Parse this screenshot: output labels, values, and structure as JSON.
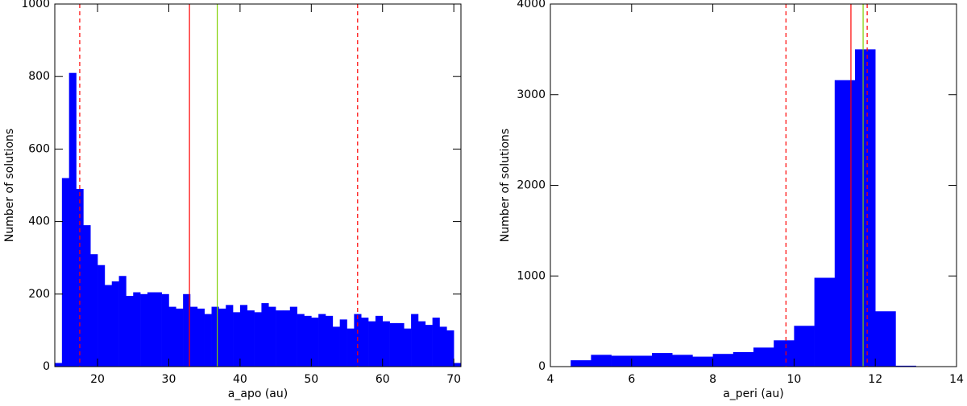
{
  "chart_data": [
    {
      "type": "histogram",
      "x_label": "a_apo (au)",
      "y_label": "Number of solutions",
      "color": "#0000ff",
      "bins": [
        14,
        15,
        16,
        17,
        18,
        19,
        20,
        21,
        22,
        23,
        24,
        25,
        26,
        27,
        28,
        29,
        30,
        31,
        32,
        33,
        34,
        35,
        36,
        37,
        38,
        39,
        40,
        41,
        42,
        43,
        44,
        45,
        46,
        47,
        48,
        49,
        50,
        51,
        52,
        53,
        54,
        55,
        56,
        57,
        58,
        59,
        60,
        61,
        62,
        63,
        64,
        65,
        66,
        67,
        68,
        69,
        70,
        71
      ],
      "values": [
        10,
        520,
        810,
        490,
        390,
        310,
        280,
        225,
        235,
        250,
        195,
        205,
        200,
        205,
        205,
        200,
        165,
        160,
        200,
        165,
        160,
        145,
        165,
        160,
        170,
        150,
        170,
        155,
        150,
        175,
        165,
        155,
        155,
        165,
        145,
        140,
        135,
        145,
        140,
        110,
        130,
        105,
        145,
        135,
        125,
        140,
        125,
        120,
        120,
        105,
        145,
        125,
        115,
        135,
        110,
        100,
        10
      ],
      "xlim": [
        14,
        71
      ],
      "xticks": [
        20,
        30,
        40,
        50,
        60,
        70
      ],
      "ylim": [
        0,
        1000
      ],
      "yticks": [
        0,
        200,
        400,
        600,
        800,
        1000
      ],
      "vlines": [
        {
          "value": 17.5,
          "color": "#ff0000",
          "style": "dashed"
        },
        {
          "value": 32.9,
          "color": "#ff0000",
          "style": "solid"
        },
        {
          "value": 36.8,
          "color": "#80d000",
          "style": "solid"
        },
        {
          "value": 56.5,
          "color": "#ff0000",
          "style": "dashed"
        }
      ]
    },
    {
      "type": "histogram",
      "x_label": "a_peri (au)",
      "y_label": "Number of solutions",
      "color": "#0000ff",
      "bins": [
        4.5,
        5,
        5.5,
        6,
        6.5,
        7,
        7.5,
        8,
        8.5,
        9,
        9.5,
        10,
        10.5,
        11,
        11.5,
        12,
        12.5,
        13
      ],
      "values": [
        70,
        130,
        120,
        120,
        150,
        130,
        110,
        140,
        160,
        210,
        290,
        450,
        980,
        3160,
        3500,
        610,
        10
      ],
      "xlim": [
        4,
        14
      ],
      "xticks": [
        4,
        6,
        8,
        10,
        12,
        14
      ],
      "ylim": [
        0,
        4000
      ],
      "yticks": [
        0,
        1000,
        2000,
        3000,
        4000
      ],
      "vlines": [
        {
          "value": 9.8,
          "color": "#ff0000",
          "style": "dashed"
        },
        {
          "value": 11.4,
          "color": "#ff0000",
          "style": "solid"
        },
        {
          "value": 11.7,
          "color": "#80d000",
          "style": "solid"
        },
        {
          "value": 11.8,
          "color": "#ff0000",
          "style": "dashed"
        }
      ]
    }
  ]
}
